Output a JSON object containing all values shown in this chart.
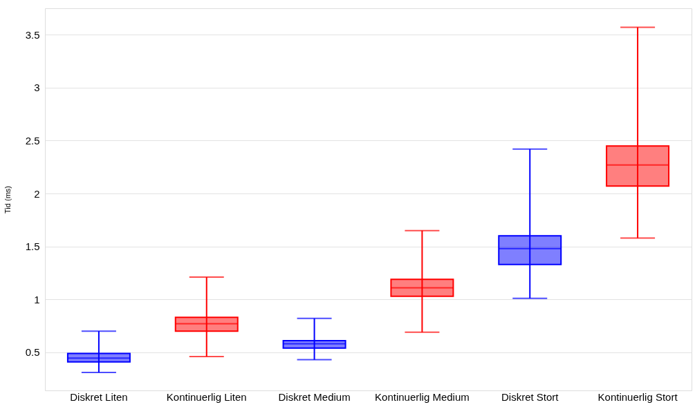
{
  "chart_data": {
    "type": "box",
    "ylabel": "Tid (ms)",
    "categories": [
      "Diskret Liten",
      "Kontinuerlig Liten",
      "Diskret Medium",
      "Kontinuerlig Medium",
      "Diskret Stort",
      "Kontinuerlig Stort"
    ],
    "colors": [
      "#0000ff",
      "#ff0000",
      "#0000ff",
      "#ff0000",
      "#0000ff",
      "#ff0000"
    ],
    "boxes": [
      {
        "low": 0.31,
        "q1": 0.41,
        "median": 0.445,
        "q3": 0.49,
        "high": 0.7
      },
      {
        "low": 0.46,
        "q1": 0.7,
        "median": 0.77,
        "q3": 0.83,
        "high": 1.21
      },
      {
        "low": 0.43,
        "q1": 0.54,
        "median": 0.58,
        "q3": 0.61,
        "high": 0.82
      },
      {
        "low": 0.69,
        "q1": 1.03,
        "median": 1.11,
        "q3": 1.19,
        "high": 1.65
      },
      {
        "low": 1.01,
        "q1": 1.33,
        "median": 1.48,
        "q3": 1.6,
        "high": 2.42
      },
      {
        "low": 1.58,
        "q1": 2.07,
        "median": 2.27,
        "q3": 2.45,
        "high": 3.57
      }
    ],
    "ylim": [
      0.14,
      3.75
    ],
    "yticks": [
      0.5,
      1,
      1.5,
      2,
      2.5,
      3,
      3.5
    ],
    "grid": "y"
  }
}
